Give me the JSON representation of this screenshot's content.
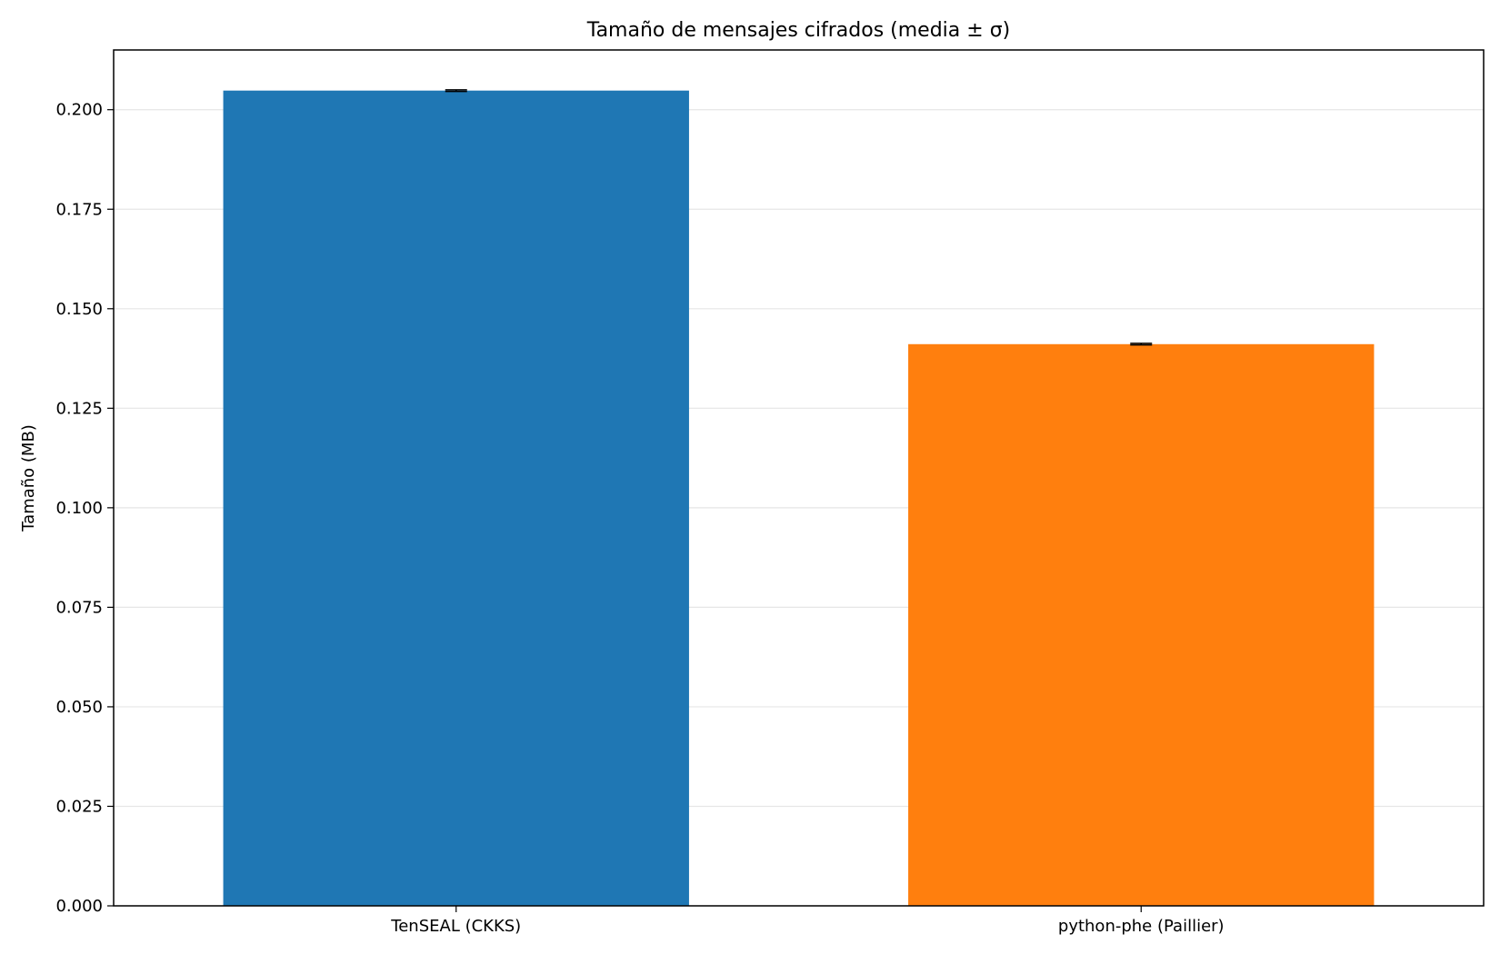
{
  "chart_data": {
    "type": "bar",
    "title": "Tamaño de mensajes cifrados (media ± σ)",
    "xlabel": "",
    "ylabel": "Tamaño (MB)",
    "categories": [
      "TenSEAL (CKKS)",
      "python-phe (Paillier)"
    ],
    "values": [
      0.2048,
      0.1411
    ],
    "errors": [
      0.0002,
      0.0002
    ],
    "colors": [
      "#1f77b4",
      "#ff7f0e"
    ],
    "ylim": [
      0,
      0.215
    ],
    "yticks": [
      0.0,
      0.025,
      0.05,
      0.075,
      0.1,
      0.125,
      0.15,
      0.175,
      0.2
    ],
    "ytick_labels": [
      "0.000",
      "0.025",
      "0.050",
      "0.075",
      "0.100",
      "0.125",
      "0.150",
      "0.175",
      "0.200"
    ],
    "grid": "horizontal",
    "legend": "none"
  }
}
